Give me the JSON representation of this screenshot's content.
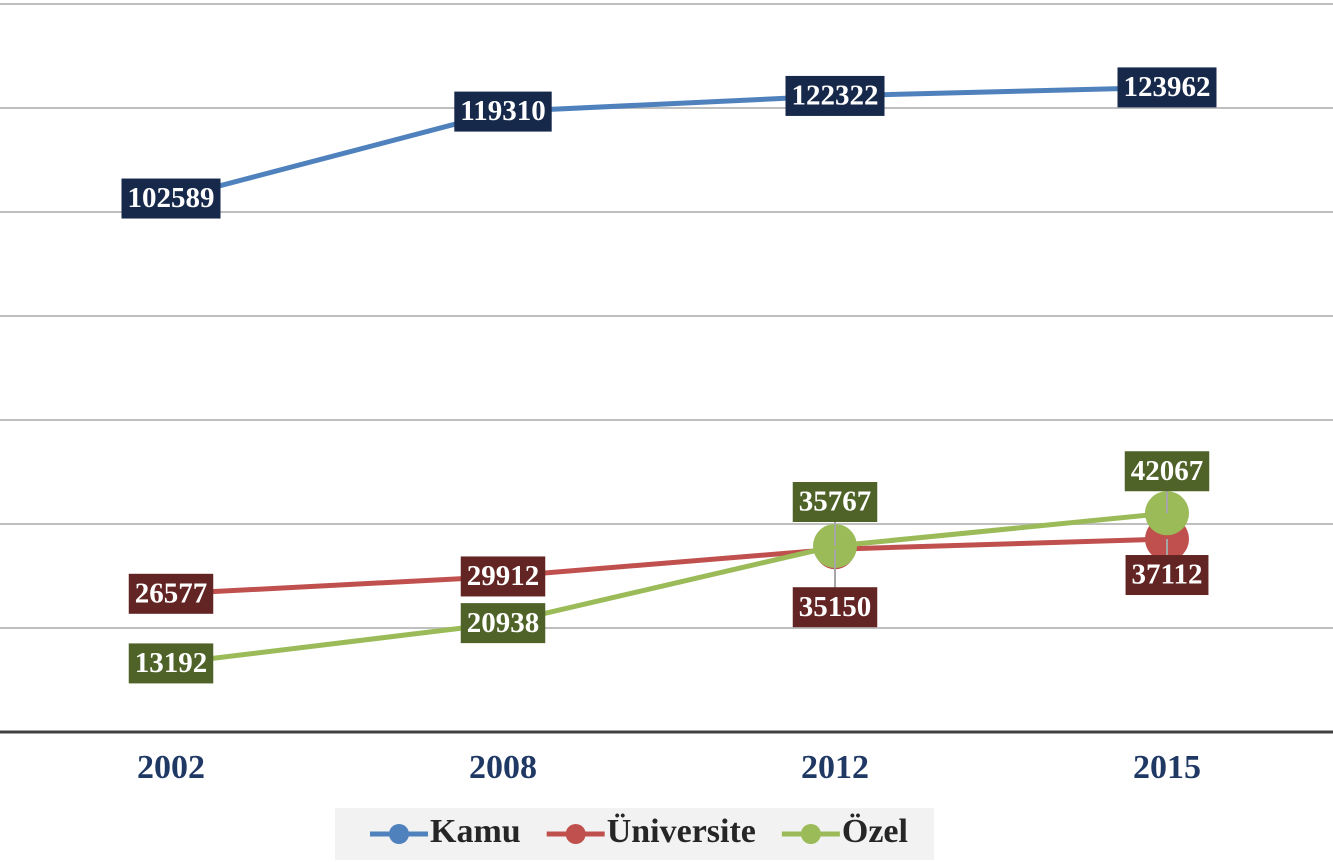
{
  "chart_data": {
    "type": "line",
    "categories": [
      "2002",
      "2008",
      "2012",
      "2015"
    ],
    "series": [
      {
        "name": "Kamu",
        "color": "#4f81bd",
        "label_color": "#17294a",
        "values": [
          102589,
          119310,
          122322,
          123962
        ]
      },
      {
        "name": "Üniversite",
        "color": "#c0504d",
        "label_color": "#632523",
        "values": [
          26577,
          29912,
          35150,
          37112
        ]
      },
      {
        "name": "Özel",
        "color": "#9bbb59",
        "label_color": "#4f6228",
        "values": [
          13192,
          20938,
          35767,
          42067
        ]
      }
    ],
    "ylim": [
      0,
      140000
    ],
    "yticks": [
      0,
      20000,
      40000,
      60000,
      80000,
      100000,
      120000,
      140000
    ],
    "grid": true,
    "legend": "bottom"
  }
}
